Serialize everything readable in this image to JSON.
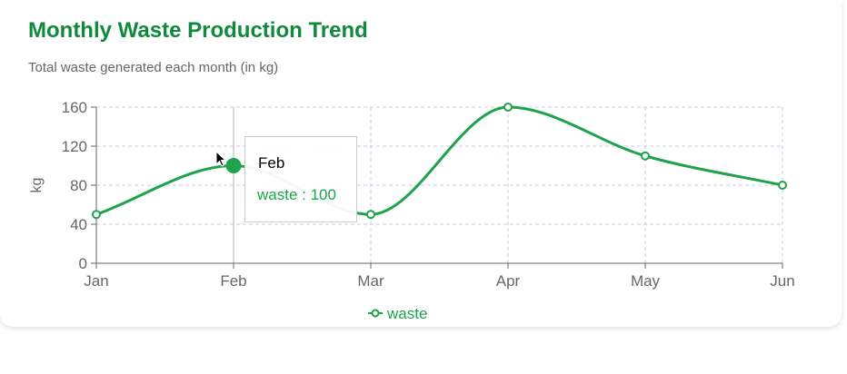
{
  "header": {
    "title": "Monthly Waste Production Trend",
    "subtitle": "Total waste generated each month (in kg)"
  },
  "tooltip": {
    "label": "Feb",
    "series": "waste",
    "separator": " : ",
    "value": "100"
  },
  "colors": {
    "line": "#1ea24c",
    "title": "#0f8a3c",
    "grid": "#c8cbe0",
    "axis": "#666666"
  },
  "chart_data": {
    "type": "line",
    "categories": [
      "Jan",
      "Feb",
      "Mar",
      "Apr",
      "May",
      "Jun"
    ],
    "series": [
      {
        "name": "waste",
        "values": [
          50,
          100,
          50,
          160,
          110,
          80
        ]
      }
    ],
    "ylabel": "kg",
    "xlabel": "",
    "ylim": [
      0,
      160
    ],
    "yticks": [
      0,
      40,
      80,
      120,
      160
    ],
    "grid": true,
    "legend": "bottom-center",
    "active_category": "Feb"
  }
}
